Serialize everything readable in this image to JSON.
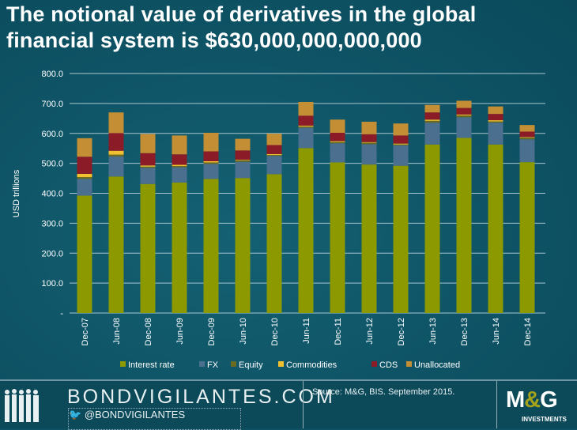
{
  "title_line1": "The notional value of derivatives in the global",
  "title_line2": "financial system is $630,000,000,000,000",
  "chart_data": {
    "type": "bar",
    "stacked": true,
    "ylabel": "USD trillions",
    "ylim": [
      0,
      800
    ],
    "yticks": [
      "-",
      "100.0",
      "200.0",
      "300.0",
      "400.0",
      "500.0",
      "600.0",
      "700.0",
      "800.0"
    ],
    "grid": true,
    "legend_position": "bottom",
    "categories": [
      "Dec-07",
      "Jun-08",
      "Dec-08",
      "Jun-09",
      "Dec-09",
      "Jun-10",
      "Dec-10",
      "Jun-11",
      "Dec-11",
      "Jun-12",
      "Dec-12",
      "Jun-13",
      "Dec-13",
      "Jun-14",
      "Dec-14"
    ],
    "series": [
      {
        "name": "Interest rate",
        "color": "#8c9900",
        "values": [
          392,
          456,
          431,
          436,
          448,
          451,
          464,
          551,
          503,
          496,
          492,
          563,
          585,
          563,
          504
        ]
      },
      {
        "name": "FX",
        "color": "#4b6f8e",
        "values": [
          56,
          67,
          54,
          51,
          50,
          54,
          61,
          68,
          64,
          68,
          68,
          73,
          69,
          73,
          76
        ]
      },
      {
        "name": "Equity",
        "color": "#6a6a22",
        "values": [
          6,
          6,
          4,
          4,
          5,
          5,
          3,
          4,
          4,
          5,
          3,
          6,
          6,
          4,
          6
        ]
      },
      {
        "name": "Commodities",
        "color": "#f0c030",
        "values": [
          11,
          13,
          4,
          4,
          4,
          2,
          3,
          3,
          3,
          2,
          3,
          4,
          3,
          4,
          2
        ]
      },
      {
        "name": "CDS",
        "color": "#8b1b26",
        "values": [
          57,
          59,
          41,
          35,
          33,
          31,
          30,
          33,
          28,
          26,
          27,
          24,
          22,
          21,
          18
        ]
      },
      {
        "name": "Unallocated",
        "color": "#c48f34",
        "values": [
          62,
          69,
          64,
          63,
          62,
          39,
          38,
          46,
          44,
          42,
          40,
          25,
          24,
          25,
          22
        ]
      }
    ]
  },
  "footer": {
    "brand": "BONDVIGILANTES.COM",
    "handle": "@BONDVIGILANTES",
    "source": "Source: M&G, BIS. September 2015.",
    "logo_text": "M&G",
    "logo_sub": "INVESTMENTS"
  }
}
